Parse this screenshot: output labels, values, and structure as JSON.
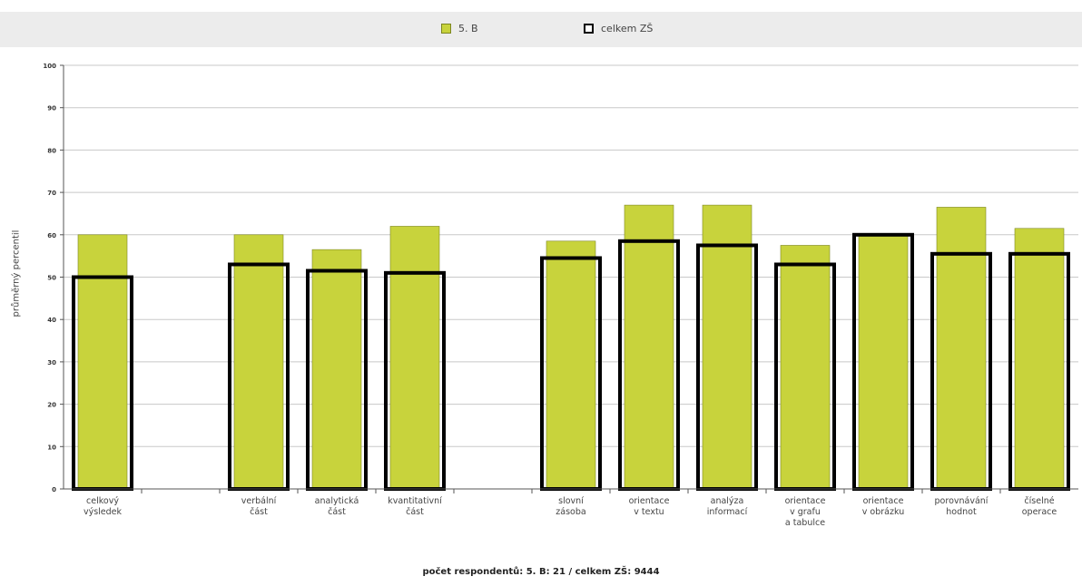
{
  "legend": {
    "series_a_label": "5. B",
    "series_b_label": "celkem ZŠ"
  },
  "footnote": "počet respondentů: 5. B: 21 / celkem ZŠ: 9444",
  "colors": {
    "bar_fill": "#c8d33c",
    "bar_stroke": "#7c8620",
    "outline": "#000000",
    "grid": "#c8c8c8",
    "legend_bg": "#ececec"
  },
  "chart_data": {
    "type": "bar",
    "ylabel": "průměrný percentil",
    "ylim": [
      0,
      100
    ],
    "yticks": [
      0,
      10,
      20,
      30,
      40,
      50,
      60,
      70,
      80,
      90,
      100
    ],
    "grid": true,
    "legend_position": "top",
    "categories": [
      [
        "celkový",
        "výsledek"
      ],
      null,
      [
        "verbální",
        "část"
      ],
      [
        "analytická",
        "část"
      ],
      [
        "kvantitativní",
        "část"
      ],
      null,
      [
        "slovní",
        "zásoba"
      ],
      [
        "orientace",
        "v textu"
      ],
      [
        "analýza",
        "informací"
      ],
      [
        "orientace",
        "v grafu",
        "a tabulce"
      ],
      [
        "orientace",
        "v obrázku"
      ],
      [
        "porovnávání",
        "hodnot"
      ],
      [
        "číselné",
        "operace"
      ]
    ],
    "series": [
      {
        "name": "5. B",
        "style": "filled",
        "values": [
          60,
          null,
          60,
          56.5,
          62,
          null,
          58.5,
          67,
          67,
          57.5,
          60,
          66.5,
          61.5
        ]
      },
      {
        "name": "celkem ZŠ",
        "style": "outline",
        "values": [
          50,
          null,
          53,
          51.5,
          51,
          null,
          54.5,
          58.5,
          57.5,
          53,
          60,
          55.5,
          55.5
        ]
      }
    ]
  }
}
